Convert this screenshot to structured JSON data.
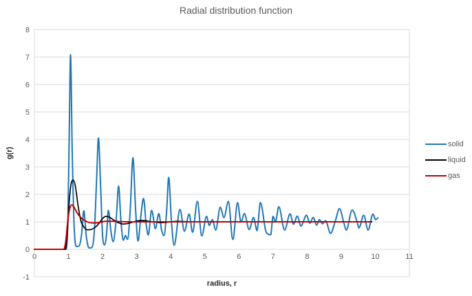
{
  "chart_data": {
    "type": "line",
    "title": "Radial distribution function",
    "xlabel": "radius,  r",
    "ylabel": "g(r)",
    "xlim": [
      0,
      11
    ],
    "ylim": [
      -1,
      8
    ],
    "xticks": [
      0,
      1,
      2,
      3,
      4,
      5,
      6,
      7,
      8,
      9,
      10,
      11
    ],
    "yticks": [
      -1,
      0,
      1,
      2,
      3,
      4,
      5,
      6,
      7,
      8
    ],
    "grid": "horizontal-only",
    "legend_position": "right",
    "colors": {
      "grid": "#D9D9D9",
      "tick_text": "#595959",
      "title_text": "#595959",
      "axis_title_text": "#262626"
    },
    "series": [
      {
        "name": "solid",
        "color": "#1F76B4",
        "points": [
          [
            0,
            0
          ],
          [
            0.55,
            0
          ],
          [
            0.93,
            0
          ],
          [
            0.98,
            1.0
          ],
          [
            1.02,
            4.0
          ],
          [
            1.06,
            7.08
          ],
          [
            1.11,
            3.5
          ],
          [
            1.17,
            0.7
          ],
          [
            1.24,
            0.1
          ],
          [
            1.31,
            0.12
          ],
          [
            1.38,
            0.5
          ],
          [
            1.45,
            1.4
          ],
          [
            1.52,
            0.5
          ],
          [
            1.6,
            0.05
          ],
          [
            1.68,
            0.06
          ],
          [
            1.76,
            0.7
          ],
          [
            1.82,
            2.4
          ],
          [
            1.88,
            4.05
          ],
          [
            1.94,
            2.4
          ],
          [
            2.0,
            0.5
          ],
          [
            2.06,
            0.16
          ],
          [
            2.12,
            0.6
          ],
          [
            2.17,
            1.42
          ],
          [
            2.24,
            0.7
          ],
          [
            2.31,
            0.28
          ],
          [
            2.4,
            1.1
          ],
          [
            2.47,
            2.3
          ],
          [
            2.54,
            1.0
          ],
          [
            2.61,
            0.33
          ],
          [
            2.67,
            0.5
          ],
          [
            2.73,
            0.36
          ],
          [
            2.81,
            1.4
          ],
          [
            2.89,
            3.33
          ],
          [
            2.97,
            1.4
          ],
          [
            3.04,
            0.3
          ],
          [
            3.13,
            1.3
          ],
          [
            3.2,
            1.85
          ],
          [
            3.28,
            0.9
          ],
          [
            3.34,
            0.52
          ],
          [
            3.44,
            1.42
          ],
          [
            3.55,
            0.75
          ],
          [
            3.65,
            1.3
          ],
          [
            3.73,
            0.7
          ],
          [
            3.8,
            0.5
          ],
          [
            3.88,
            1.4
          ],
          [
            3.94,
            2.62
          ],
          [
            4.02,
            1.0
          ],
          [
            4.1,
            0.15
          ],
          [
            4.27,
            1.45
          ],
          [
            4.4,
            0.66
          ],
          [
            4.54,
            1.28
          ],
          [
            4.64,
            0.62
          ],
          [
            4.78,
            1.74
          ],
          [
            4.91,
            0.49
          ],
          [
            5.05,
            1.2
          ],
          [
            5.13,
            0.87
          ],
          [
            5.22,
            1.08
          ],
          [
            5.32,
            0.7
          ],
          [
            5.45,
            1.53
          ],
          [
            5.56,
            1.16
          ],
          [
            5.69,
            1.74
          ],
          [
            5.82,
            0.36
          ],
          [
            5.96,
            1.7
          ],
          [
            6.06,
            1.0
          ],
          [
            6.16,
            1.3
          ],
          [
            6.3,
            0.72
          ],
          [
            6.43,
            1.16
          ],
          [
            6.53,
            0.68
          ],
          [
            6.63,
            1.7
          ],
          [
            6.8,
            0.62
          ],
          [
            6.93,
            0.53
          ],
          [
            7.0,
            1.2
          ],
          [
            7.07,
            1.0
          ],
          [
            7.17,
            1.55
          ],
          [
            7.34,
            0.7
          ],
          [
            7.5,
            1.29
          ],
          [
            7.6,
            0.91
          ],
          [
            7.71,
            1.21
          ],
          [
            7.82,
            0.85
          ],
          [
            7.98,
            1.24
          ],
          [
            8.08,
            0.95
          ],
          [
            8.18,
            1.16
          ],
          [
            8.28,
            0.88
          ],
          [
            8.36,
            1.08
          ],
          [
            8.45,
            0.93
          ],
          [
            8.54,
            1.04
          ],
          [
            8.69,
            0.58
          ],
          [
            8.82,
            1.0
          ],
          [
            8.95,
            1.48
          ],
          [
            9.08,
            0.95
          ],
          [
            9.15,
            0.7
          ],
          [
            9.32,
            1.43
          ],
          [
            9.46,
            1.03
          ],
          [
            9.52,
            0.78
          ],
          [
            9.66,
            1.24
          ],
          [
            9.79,
            0.7
          ],
          [
            9.93,
            1.28
          ],
          [
            10.01,
            1.08
          ],
          [
            10.08,
            1.15
          ]
        ]
      },
      {
        "name": "liquid",
        "color": "#000000",
        "points": [
          [
            0,
            0
          ],
          [
            0.6,
            0
          ],
          [
            0.9,
            0
          ],
          [
            0.96,
            0.5
          ],
          [
            1.02,
            1.7
          ],
          [
            1.08,
            2.4
          ],
          [
            1.14,
            2.52
          ],
          [
            1.2,
            2.3
          ],
          [
            1.28,
            1.6
          ],
          [
            1.36,
            1.05
          ],
          [
            1.46,
            0.8
          ],
          [
            1.56,
            0.71
          ],
          [
            1.66,
            0.72
          ],
          [
            1.78,
            0.8
          ],
          [
            1.9,
            0.95
          ],
          [
            2.0,
            1.12
          ],
          [
            2.1,
            1.2
          ],
          [
            2.2,
            1.17
          ],
          [
            2.32,
            1.07
          ],
          [
            2.46,
            0.97
          ],
          [
            2.6,
            0.92
          ],
          [
            2.74,
            0.94
          ],
          [
            2.88,
            0.99
          ],
          [
            3.0,
            1.03
          ],
          [
            3.12,
            1.05
          ],
          [
            3.26,
            1.04
          ],
          [
            3.4,
            1.01
          ],
          [
            3.55,
            0.99
          ],
          [
            3.7,
            0.97
          ],
          [
            3.85,
            0.98
          ],
          [
            4.0,
            1.0
          ],
          [
            4.2,
            1.02
          ],
          [
            4.4,
            1.01
          ],
          [
            4.6,
            1.0
          ],
          [
            5.0,
            1.0
          ],
          [
            5.5,
            1.0
          ],
          [
            6.0,
            1.0
          ],
          [
            6.5,
            1.0
          ],
          [
            7.0,
            1.0
          ],
          [
            7.5,
            1.0
          ],
          [
            8.0,
            1.0
          ],
          [
            8.5,
            1.0
          ],
          [
            9.0,
            1.0
          ],
          [
            9.5,
            1.0
          ],
          [
            9.9,
            1.0
          ]
        ]
      },
      {
        "name": "gas",
        "color": "#C00000",
        "points": [
          [
            0,
            0
          ],
          [
            0.5,
            0
          ],
          [
            0.86,
            0
          ],
          [
            0.92,
            0.3
          ],
          [
            0.98,
            1.05
          ],
          [
            1.04,
            1.5
          ],
          [
            1.1,
            1.62
          ],
          [
            1.17,
            1.52
          ],
          [
            1.25,
            1.33
          ],
          [
            1.35,
            1.17
          ],
          [
            1.45,
            1.07
          ],
          [
            1.55,
            1.0
          ],
          [
            1.68,
            0.96
          ],
          [
            1.8,
            0.96
          ],
          [
            1.95,
            0.99
          ],
          [
            2.1,
            1.02
          ],
          [
            2.3,
            1.02
          ],
          [
            2.5,
            1.01
          ],
          [
            2.7,
            1.0
          ],
          [
            3.0,
            1.0
          ],
          [
            3.5,
            1.0
          ],
          [
            4.0,
            1.0
          ],
          [
            4.5,
            1.0
          ],
          [
            5.0,
            1.0
          ],
          [
            5.5,
            1.0
          ],
          [
            6.0,
            1.0
          ],
          [
            6.5,
            1.0
          ],
          [
            7.0,
            1.0
          ],
          [
            7.5,
            1.0
          ],
          [
            8.0,
            1.0
          ],
          [
            8.5,
            1.0
          ],
          [
            9.0,
            1.0
          ],
          [
            9.5,
            1.0
          ],
          [
            9.85,
            1.0
          ]
        ]
      }
    ]
  }
}
